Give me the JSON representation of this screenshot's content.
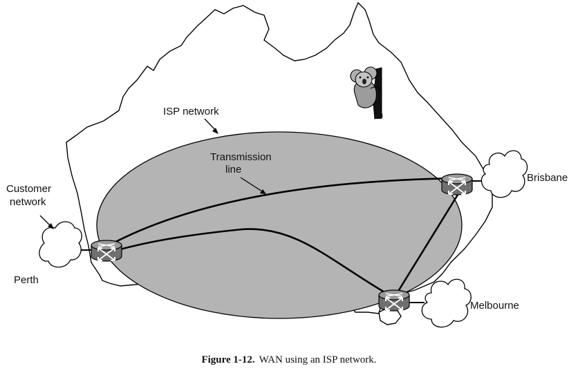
{
  "diagram": {
    "labels": {
      "isp_network": "ISP network",
      "transmission_line_1": "Transmission",
      "transmission_line_2": "line",
      "customer_network_1": "Customer",
      "customer_network_2": "network",
      "perth": "Perth",
      "brisbane": "Brisbane",
      "melbourne": "Melbourne"
    },
    "caption": {
      "number": "Figure 1-12.",
      "text": "WAN using an ISP network."
    },
    "colors": {
      "ellipse_fill": "#b4b4b4",
      "router_top": "#9a9a9a",
      "router_body": "#6f6f6f",
      "outline": "#000000"
    },
    "icons": [
      "australia-map",
      "koala-icon",
      "router-icon",
      "cloud-icon"
    ]
  }
}
